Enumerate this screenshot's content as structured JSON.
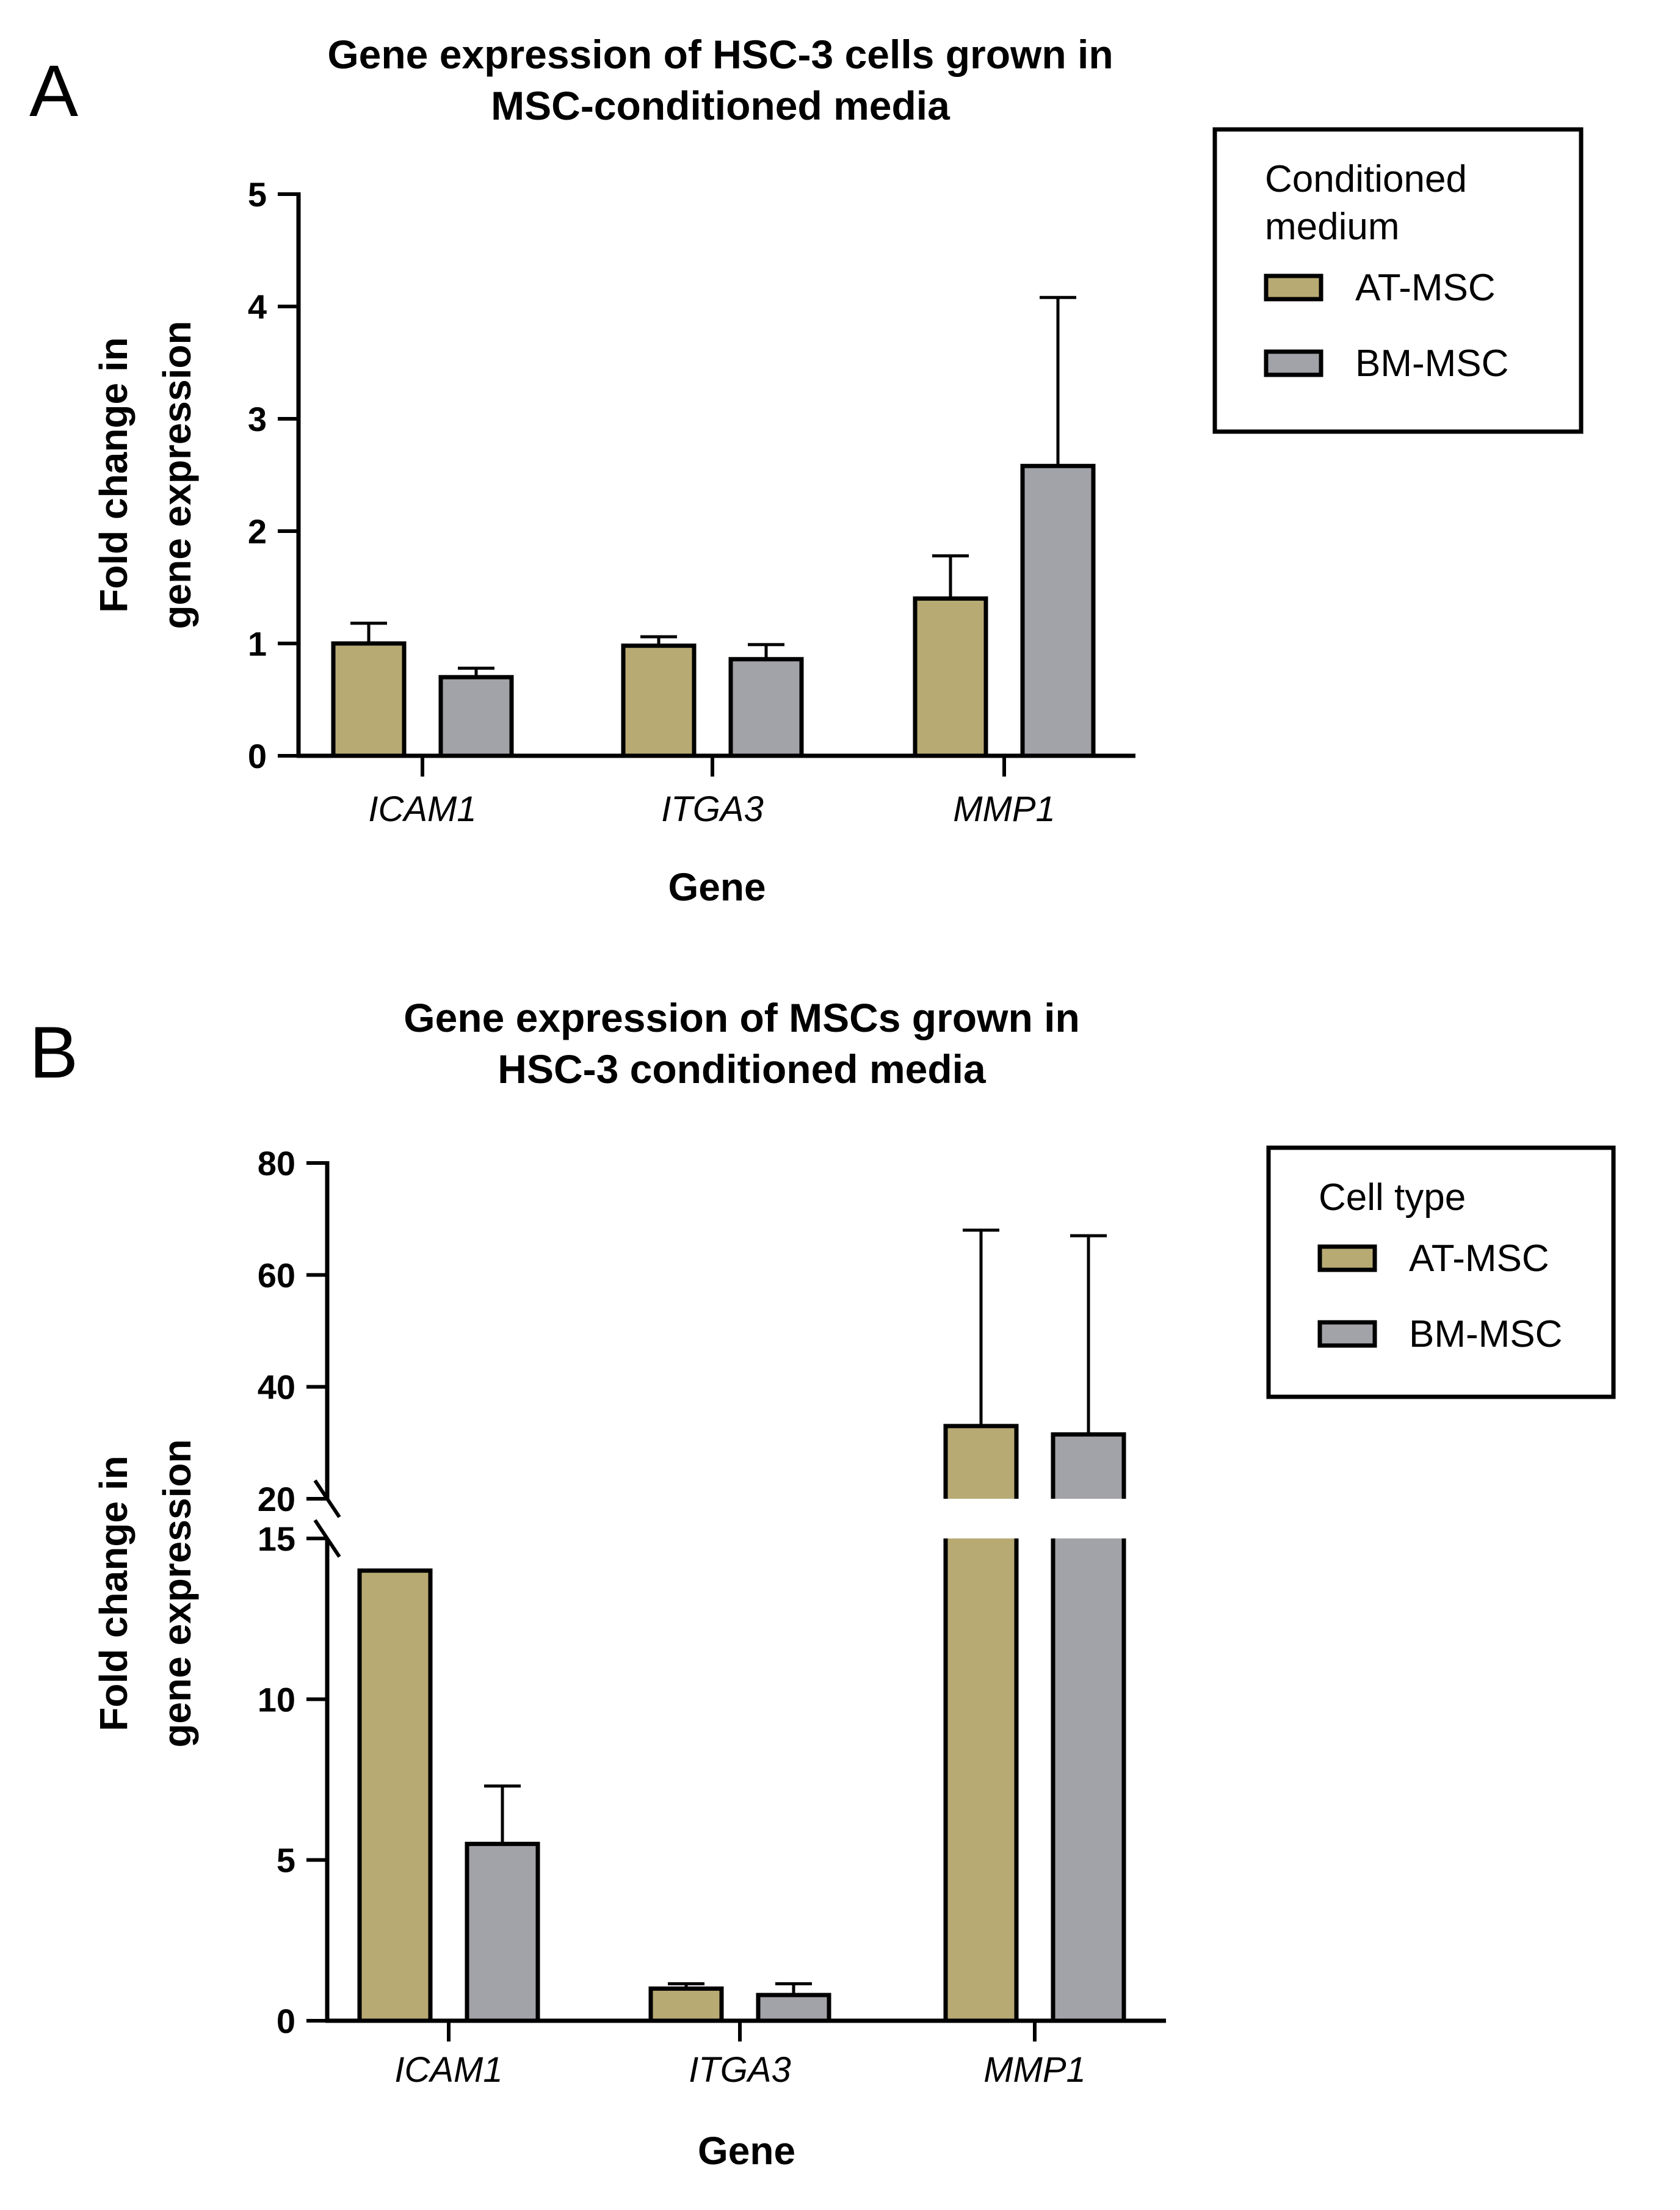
{
  "colors": {
    "at_msc": "#b7aa73",
    "bm_msc": "#a2a3a8",
    "axis": "#000000"
  },
  "chart_data": [
    {
      "panel": "A",
      "type": "bar",
      "title": [
        "Gene expression of HSC-3 cells grown in",
        "MSC-conditioned media"
      ],
      "xlabel": "Gene",
      "ylabel": [
        "Fold change in",
        "gene expression"
      ],
      "categories": [
        "ICAM1",
        "ITGA3",
        "MMP1"
      ],
      "ylim": [
        0,
        5
      ],
      "yticks": [
        0,
        1,
        2,
        3,
        4,
        5
      ],
      "legend_title": [
        "Conditioned",
        "medium"
      ],
      "legend_position": "top-right",
      "series": [
        {
          "name": "AT-MSC",
          "values": [
            1.0,
            0.98,
            1.4
          ],
          "error": [
            0.18,
            0.08,
            0.38
          ]
        },
        {
          "name": "BM-MSC",
          "values": [
            0.7,
            0.86,
            2.58
          ],
          "error": [
            0.08,
            0.13,
            1.5
          ]
        }
      ]
    },
    {
      "panel": "B",
      "type": "bar",
      "title": [
        "Gene expression of MSCs grown in",
        "HSC-3 conditioned media"
      ],
      "xlabel": "Gene",
      "ylabel": [
        "Fold change in",
        "gene expression"
      ],
      "categories": [
        "ICAM1",
        "ITGA3",
        "MMP1"
      ],
      "y_axis_break": {
        "lower_range": [
          0,
          15
        ],
        "upper_range": [
          20,
          80
        ]
      },
      "yticks_lower": [
        0,
        5,
        10,
        15
      ],
      "yticks_upper": [
        20,
        40,
        60,
        80
      ],
      "legend_title": [
        "Cell type"
      ],
      "legend_position": "top-right",
      "series": [
        {
          "name": "AT-MSC",
          "values": [
            14,
            1.0,
            33
          ],
          "error": [
            0,
            0.15,
            35
          ]
        },
        {
          "name": "BM-MSC",
          "values": [
            5.5,
            0.8,
            31.5
          ],
          "error": [
            1.8,
            0.35,
            35.5
          ]
        }
      ]
    }
  ]
}
